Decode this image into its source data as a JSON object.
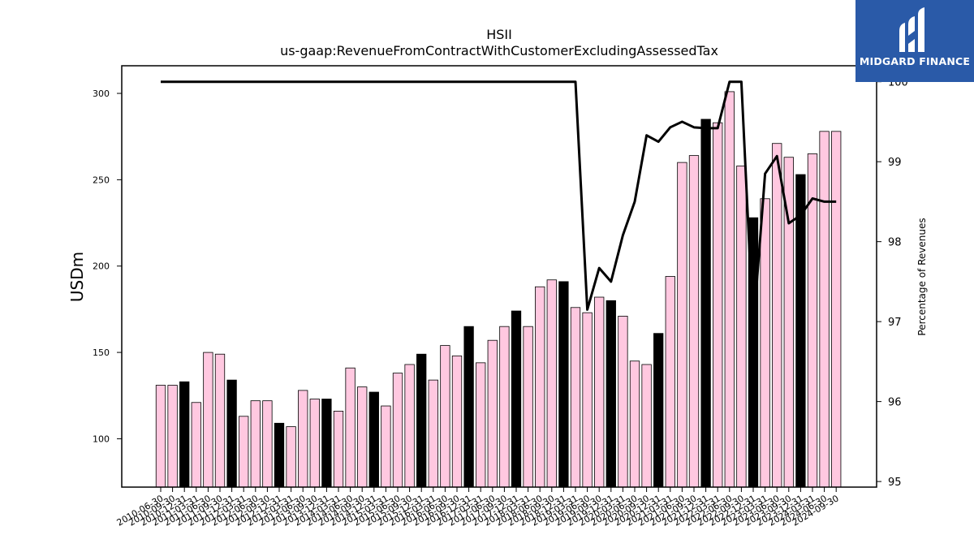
{
  "brand": {
    "name": "MIDGARD FINANCE",
    "bg_color": "#2a5aa8"
  },
  "chart_data": {
    "type": "bar",
    "title": "HSII",
    "subtitle": "us-gaap:RevenueFromContractWithCustomerExcludingAssessedTax",
    "ylabel": "USDm",
    "y2label": "Percentage of Revenues",
    "ylim": [
      72,
      316
    ],
    "y2lim": [
      94.93,
      100.2
    ],
    "yticks": [
      100,
      150,
      200,
      250,
      300
    ],
    "y2ticks": [
      95,
      96,
      97,
      98,
      99,
      100
    ],
    "grid": false,
    "colors": {
      "quarter": "#ffc8e0",
      "annual": "#000000",
      "line": "#000000"
    },
    "x": [
      "2010-06-30",
      "2010-09-30",
      "2010-12-31",
      "2011-03-31",
      "2011-06-30",
      "2011-09-30",
      "2011-12-31",
      "2012-03-31",
      "2012-06-30",
      "2012-09-30",
      "2012-12-31",
      "2013-03-31",
      "2013-06-30",
      "2013-09-30",
      "2013-12-31",
      "2014-03-31",
      "2014-06-30",
      "2014-09-30",
      "2014-12-31",
      "2015-03-31",
      "2015-06-30",
      "2015-09-30",
      "2015-12-31",
      "2016-03-31",
      "2016-06-30",
      "2016-09-30",
      "2016-12-31",
      "2017-03-31",
      "2017-06-30",
      "2017-09-30",
      "2017-12-31",
      "2018-03-31",
      "2018-06-30",
      "2018-09-30",
      "2018-12-31",
      "2019-03-31",
      "2019-06-30",
      "2019-09-30",
      "2019-12-31",
      "2020-03-31",
      "2020-06-30",
      "2020-09-30",
      "2020-12-31",
      "2021-03-31",
      "2021-06-30",
      "2021-09-30",
      "2021-12-31",
      "2022-03-31",
      "2022-06-30",
      "2022-09-30",
      "2022-12-31",
      "2023-03-31",
      "2023-06-30",
      "2023-09-30",
      "2023-12-31",
      "2024-03-31",
      "2024-06-30",
      "2024-09-30"
    ],
    "series": [
      {
        "kind": "bar",
        "values": [
          131,
          131,
          133,
          121,
          150,
          149,
          134,
          113,
          122,
          122,
          109,
          107,
          128,
          123,
          123,
          116,
          141,
          130,
          127,
          119,
          138,
          143,
          149,
          134,
          154,
          148,
          165,
          144,
          157,
          165,
          174,
          165,
          188,
          192,
          191,
          176,
          173,
          182,
          180,
          171,
          145,
          143,
          161,
          194,
          260,
          264,
          285,
          283,
          301,
          258,
          228,
          239,
          271,
          263,
          253,
          265,
          278,
          278
        ],
        "annual": [
          false,
          false,
          true,
          false,
          false,
          false,
          true,
          false,
          false,
          false,
          true,
          false,
          false,
          false,
          true,
          false,
          false,
          false,
          true,
          false,
          false,
          false,
          true,
          false,
          false,
          false,
          true,
          false,
          false,
          false,
          true,
          false,
          false,
          false,
          true,
          false,
          false,
          false,
          true,
          false,
          false,
          false,
          true,
          false,
          false,
          false,
          true,
          false,
          false,
          false,
          true,
          false,
          false,
          false,
          true,
          false,
          false,
          false
        ]
      },
      {
        "kind": "line",
        "axis": "right",
        "values": [
          100,
          100,
          100,
          100,
          100,
          100,
          100,
          100,
          100,
          100,
          100,
          100,
          100,
          100,
          100,
          100,
          100,
          100,
          100,
          100,
          100,
          100,
          100,
          100,
          100,
          100,
          100,
          100,
          100,
          100,
          100,
          100,
          100,
          100,
          100,
          100,
          97.15,
          97.67,
          97.5,
          98.08,
          98.5,
          99.33,
          99.25,
          99.43,
          99.5,
          99.43,
          99.42,
          99.42,
          100,
          100,
          96.9,
          98.85,
          99.07,
          98.23,
          98.33,
          98.54,
          98.5,
          98.5
        ]
      }
    ]
  }
}
